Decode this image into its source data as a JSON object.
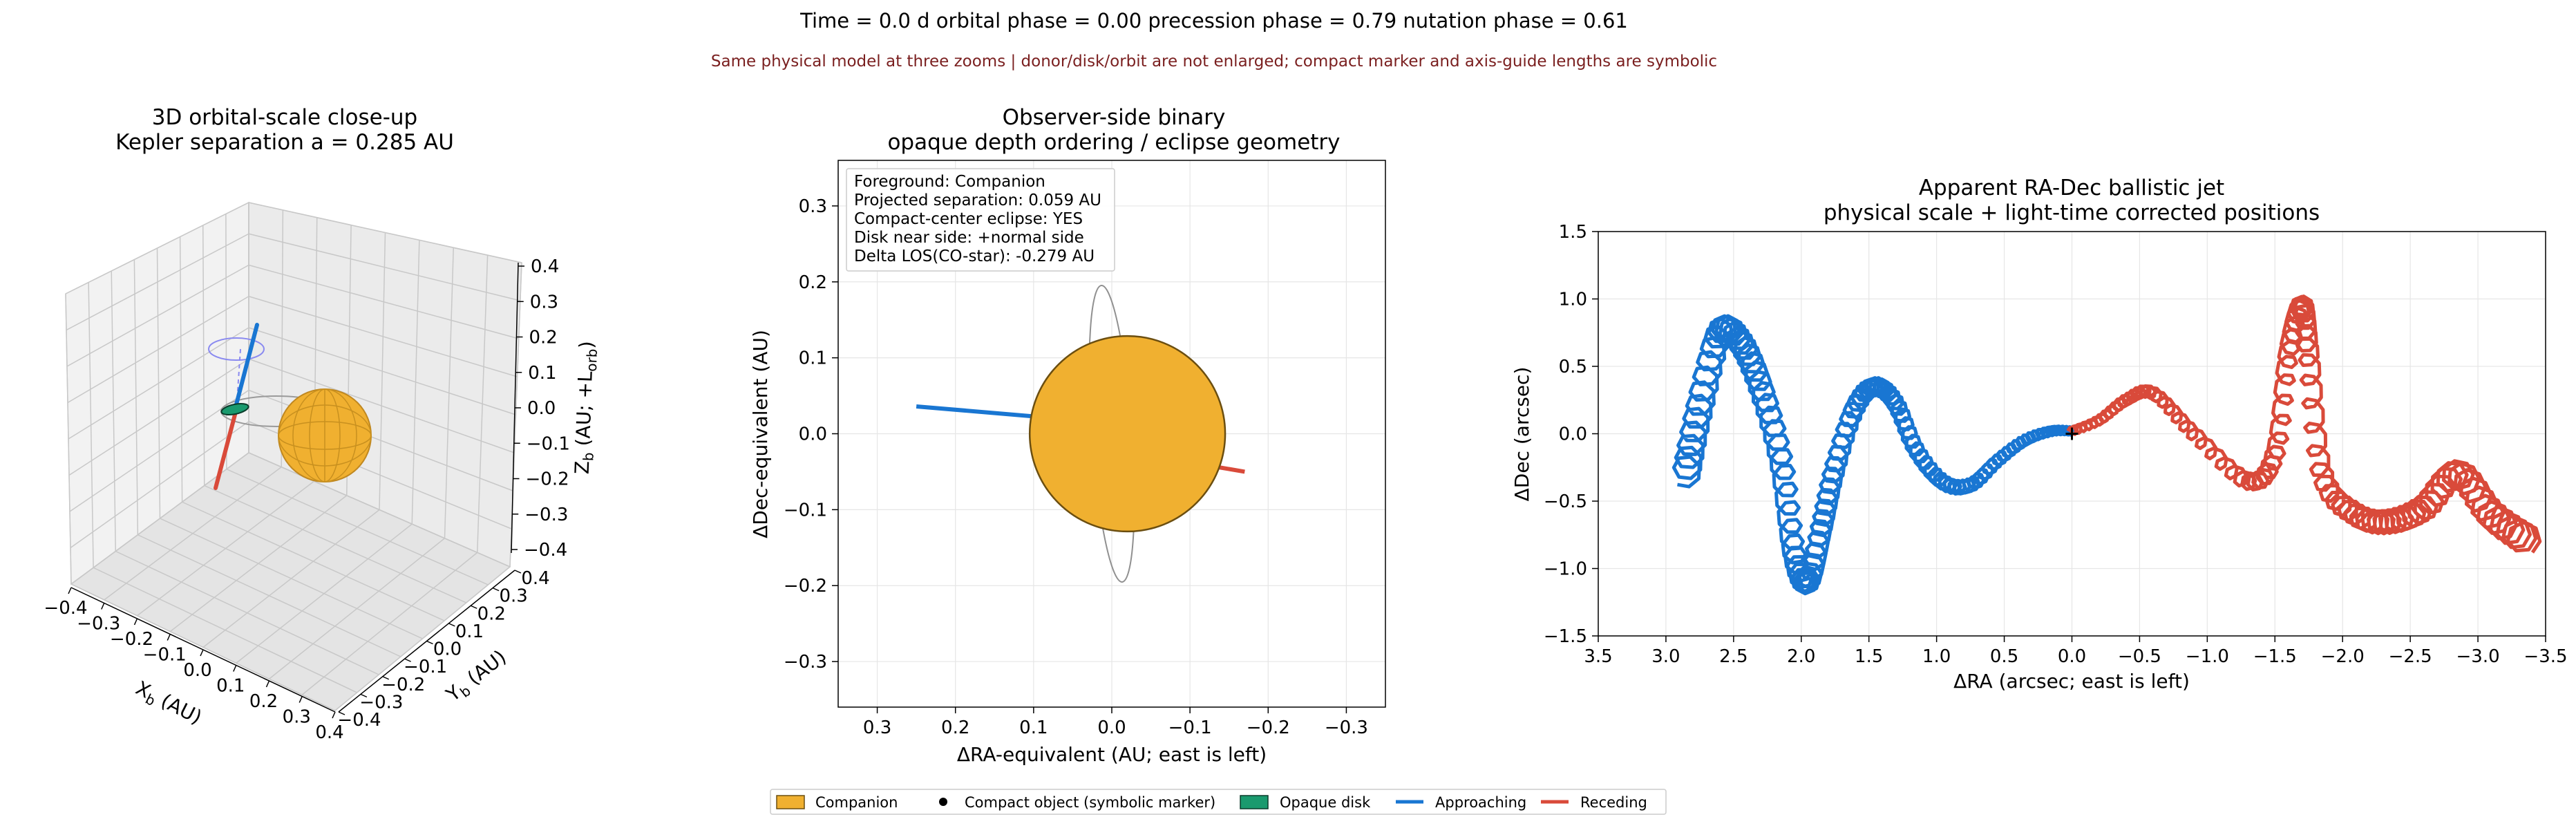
{
  "header": {
    "status_line": "Time =    0.0 d   orbital phase =  0.00   precession phase =  0.79   nutation phase =  0.61",
    "subtitle": "Same physical model at three zooms | donor/disk/orbit are not enlarged; compact marker and axis-guide lengths are symbolic"
  },
  "colors": {
    "companion": "#F0B030",
    "companion_edge": "#6B4E10",
    "disk": "#1A9A6E",
    "approaching": "#1976D2",
    "receding": "#D94A3A",
    "subtitle": "#7A1F1F",
    "orbit_guide": "#8A8AF0"
  },
  "panels": {
    "p3d": {
      "title_line1": "3D orbital-scale close-up",
      "title_line2": "Kepler separation a = 0.285 AU",
      "xlabel": "X_b (AU)",
      "ylabel": "Y_b (AU)",
      "zlabel": "Z_b (AU; +L_orb)",
      "x_ticks": [
        "−0.4",
        "−0.3",
        "−0.2",
        "−0.1",
        "0.0",
        "0.1",
        "0.2",
        "0.3",
        "0.4"
      ],
      "y_ticks": [
        "−0.4",
        "−0.3",
        "−0.2",
        "−0.1",
        "0.0",
        "0.1",
        "0.2",
        "0.3",
        "0.4"
      ],
      "z_ticks": [
        "0.4",
        "0.3",
        "0.2",
        "0.1",
        "0.0",
        "−0.1",
        "−0.2",
        "−0.3",
        "−0.4"
      ]
    },
    "sky": {
      "title_line1": "Observer-side binary",
      "title_line2": "opaque depth ordering / eclipse geometry",
      "xlabel": "ΔRA-equivalent (AU; east is left)",
      "ylabel": "ΔDec-equivalent (AU)",
      "x_ticks": [
        "0.3",
        "0.2",
        "0.1",
        "0.0",
        "−0.1",
        "−0.2",
        "−0.3"
      ],
      "y_ticks": [
        "0.3",
        "0.2",
        "0.1",
        "0.0",
        "−0.1",
        "−0.2",
        "−0.3"
      ],
      "info": [
        "Foreground: Companion",
        "Projected separation: 0.059 AU",
        "Compact-center eclipse: YES",
        "Disk near side: +normal side",
        "Delta LOS(CO-star): -0.279 AU"
      ]
    },
    "jet": {
      "title_line1": "Apparent RA-Dec ballistic jet",
      "title_line2": "physical scale + light-time corrected positions",
      "xlabel": "ΔRA (arcsec; east is left)",
      "ylabel": "ΔDec (arcsec)",
      "x_ticks": [
        "3.5",
        "3.0",
        "2.5",
        "2.0",
        "1.5",
        "1.0",
        "0.5",
        "0.0",
        "−0.5",
        "−1.0",
        "−1.5",
        "−2.0",
        "−2.5",
        "−3.0",
        "−3.5"
      ],
      "y_ticks": [
        "1.5",
        "1.0",
        "0.5",
        "0.0",
        "−0.5",
        "−1.0",
        "−1.5"
      ]
    }
  },
  "legend": {
    "companion": "Companion",
    "compact": "Compact object (symbolic marker)",
    "disk": "Opaque disk",
    "approaching": "Approaching",
    "receding": "Receding"
  },
  "chart_data": [
    {
      "type": "scatter",
      "panel": "3D orbital-scale close-up",
      "kepler_separation_au": 0.285,
      "xlim": [
        -0.4,
        0.4
      ],
      "ylim": [
        -0.4,
        0.4
      ],
      "zlim": [
        -0.4,
        0.4
      ],
      "grid": true
    },
    {
      "type": "scatter",
      "panel": "Observer-side binary",
      "xlim": [
        0.35,
        -0.35
      ],
      "ylim": [
        -0.36,
        0.36
      ],
      "companion_center": [
        -0.02,
        0.0
      ],
      "companion_radius": 0.125,
      "disk_ellipse": {
        "center": [
          0.0,
          0.0
        ],
        "semi_minor": 0.008,
        "semi_major": 0.19,
        "angle_deg": -94
      },
      "jet_approaching": [
        [
          0.01,
          0.015
        ],
        [
          0.25,
          0.036
        ]
      ],
      "jet_receding": [
        [
          -0.13,
          -0.043
        ],
        [
          -0.17,
          -0.05
        ]
      ],
      "grid": true,
      "legend_position": "bottom-center"
    },
    {
      "type": "line",
      "panel": "Apparent RA-Dec ballistic jet",
      "xlim": [
        3.5,
        -3.5
      ],
      "ylim": [
        -1.5,
        1.5
      ],
      "grid": true,
      "series": [
        {
          "name": "Approaching",
          "x": [
            0.0,
            0.15,
            0.35,
            0.55,
            0.75,
            0.95,
            1.15,
            1.3,
            1.45,
            1.6,
            1.75,
            1.85,
            1.95,
            2.05,
            2.15,
            2.3,
            2.45,
            2.6,
            2.75,
            2.85
          ],
          "y": [
            0.02,
            0.02,
            -0.05,
            -0.2,
            -0.38,
            -0.36,
            -0.12,
            0.22,
            0.35,
            0.2,
            -0.25,
            -0.7,
            -1.1,
            -0.9,
            -0.2,
            0.35,
            0.68,
            0.75,
            0.2,
            -0.3
          ]
        },
        {
          "name": "Receding",
          "x": [
            0.0,
            -0.2,
            -0.4,
            -0.6,
            -0.9,
            -1.3,
            -1.5,
            -1.6,
            -1.7,
            -1.75,
            -1.85,
            -2.1,
            -2.35,
            -2.6,
            -2.85,
            -3.1,
            -3.35
          ],
          "y": [
            0.02,
            0.1,
            0.25,
            0.3,
            0.0,
            -0.35,
            -0.15,
            0.6,
            0.95,
            0.6,
            -0.3,
            -0.6,
            -0.65,
            -0.55,
            -0.3,
            -0.6,
            -0.78
          ]
        }
      ]
    }
  ]
}
